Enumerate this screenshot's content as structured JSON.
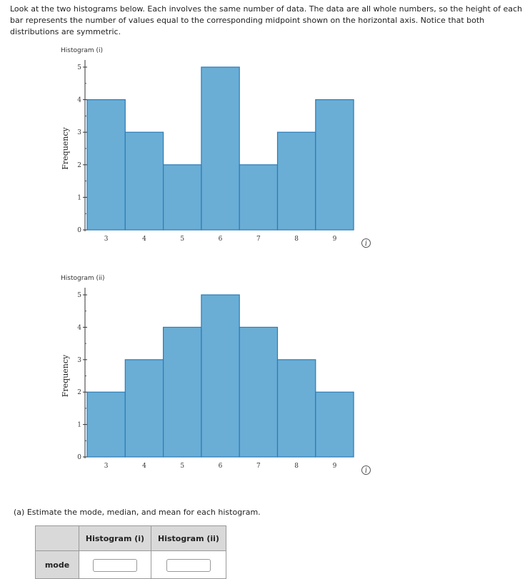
{
  "intro": "Look at the two histograms below. Each involves the same number of data. The data are all whole numbers, so the height of each bar represents the number of values equal to the corresponding midpoint shown on the horizontal axis. Notice that both distributions are symmetric.",
  "icons": {
    "info": "info-icon"
  },
  "colors": {
    "bar_fill": "#6aaed6",
    "bar_stroke": "#2c7bb6"
  },
  "chart_data": [
    {
      "type": "bar",
      "title": "Histogram (i)",
      "categories": [
        "3",
        "4",
        "5",
        "6",
        "7",
        "8",
        "9"
      ],
      "values": [
        4,
        3,
        2,
        5,
        2,
        3,
        4
      ],
      "xlabel": "",
      "ylabel": "Frequency",
      "ylim": [
        0,
        5
      ],
      "yticks": [
        "0",
        "1",
        "2",
        "3",
        "4",
        "5"
      ],
      "grid": false
    },
    {
      "type": "bar",
      "title": "Histogram (ii)",
      "categories": [
        "3",
        "4",
        "5",
        "6",
        "7",
        "8",
        "9"
      ],
      "values": [
        2,
        3,
        4,
        5,
        4,
        3,
        2
      ],
      "xlabel": "",
      "ylabel": "Frequency",
      "ylim": [
        0,
        5
      ],
      "yticks": [
        "0",
        "1",
        "2",
        "3",
        "4",
        "5"
      ],
      "grid": false
    }
  ],
  "part_a": "(a)  Estimate the mode, median, and mean for each histogram.",
  "table": {
    "headers": [
      "Histogram (i)",
      "Histogram (ii)"
    ],
    "rows": [
      {
        "label": "mode",
        "values": [
          "",
          ""
        ]
      }
    ]
  }
}
